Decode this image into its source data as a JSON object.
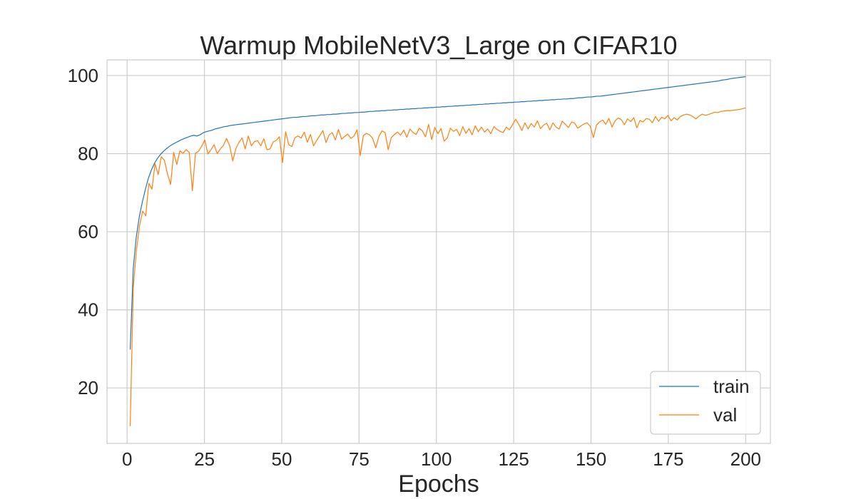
{
  "chart_data": {
    "type": "line",
    "title": "Warmup MobileNetV3_Large on CIFAR10",
    "xlabel": "Epochs",
    "ylabel": "",
    "xlim": [
      -6.5,
      208
    ],
    "ylim": [
      5.8,
      104
    ],
    "xticks": [
      0,
      25,
      50,
      75,
      100,
      125,
      150,
      175,
      200
    ],
    "yticks": [
      20,
      40,
      60,
      80,
      100
    ],
    "grid": true,
    "legend_position": "bottom-right",
    "x_start": 1,
    "x_end": 200,
    "series": [
      {
        "name": "train",
        "color": "#1f77b4",
        "values": [
          29.8,
          50.5,
          58.6,
          63.8,
          67.6,
          70.8,
          73.7,
          75.8,
          77.5,
          78.8,
          79.8,
          80.6,
          81.3,
          81.9,
          82.4,
          82.8,
          83.2,
          83.6,
          83.9,
          84.2,
          84.5,
          84.7,
          84.5,
          84.8,
          85.3,
          85.6,
          85.8,
          86.0,
          86.3,
          86.5,
          86.7,
          86.9,
          87.0,
          87.2,
          87.3,
          87.4,
          87.5,
          87.6,
          87.7,
          87.8,
          87.9,
          88.0,
          88.1,
          88.2,
          88.3,
          88.4,
          88.5,
          88.6,
          88.7,
          88.8,
          88.9,
          89.0,
          89.1,
          89.2,
          89.3,
          89.3,
          89.4,
          89.5,
          89.5,
          89.6,
          89.7,
          89.7,
          89.8,
          89.9,
          89.9,
          90.0,
          90.0,
          90.1,
          90.1,
          90.2,
          90.3,
          90.3,
          90.4,
          90.4,
          90.5,
          90.5,
          90.6,
          90.6,
          90.7,
          90.8,
          90.8,
          90.9,
          90.9,
          91.0,
          91.0,
          91.1,
          91.1,
          91.2,
          91.2,
          91.3,
          91.3,
          91.4,
          91.4,
          91.5,
          91.5,
          91.6,
          91.6,
          91.7,
          91.7,
          91.8,
          91.8,
          91.9,
          91.9,
          92.0,
          92.0,
          92.1,
          92.1,
          92.2,
          92.2,
          92.3,
          92.3,
          92.4,
          92.4,
          92.5,
          92.5,
          92.6,
          92.6,
          92.7,
          92.7,
          92.8,
          92.8,
          92.9,
          92.9,
          93.0,
          93.0,
          93.1,
          93.1,
          93.2,
          93.2,
          93.3,
          93.3,
          93.4,
          93.4,
          93.5,
          93.5,
          93.6,
          93.6,
          93.7,
          93.7,
          93.8,
          93.8,
          93.9,
          93.9,
          94.0,
          94.0,
          94.1,
          94.1,
          94.2,
          94.3,
          94.3,
          94.4,
          94.5,
          94.5,
          94.6,
          94.7,
          94.7,
          94.8,
          94.9,
          95.0,
          95.1,
          95.2,
          95.3,
          95.4,
          95.5,
          95.6,
          95.7,
          95.8,
          95.9,
          96.0,
          96.1,
          96.2,
          96.3,
          96.4,
          96.5,
          96.6,
          96.7,
          96.8,
          96.9,
          97.0,
          97.1,
          97.2,
          97.3,
          97.4,
          97.5,
          97.6,
          97.7,
          97.8,
          97.9,
          98.0,
          98.1,
          98.2,
          98.3,
          98.4,
          98.5,
          98.6,
          98.8,
          98.9,
          99.0,
          99.2,
          99.3,
          99.4,
          99.5,
          99.6,
          99.7
        ]
      },
      {
        "name": "val",
        "color": "#ff7f0e",
        "values": [
          10.2,
          45.8,
          55.2,
          61.5,
          65.3,
          64.1,
          72.4,
          70.9,
          77.4,
          74.6,
          79.2,
          78.3,
          74.8,
          72.1,
          80.3,
          77.2,
          80.7,
          80.1,
          81.0,
          80.3,
          70.5,
          80.1,
          80.6,
          81.9,
          83.5,
          79.9,
          81.0,
          82.3,
          80.0,
          81.2,
          82.1,
          83.9,
          82.0,
          78.1,
          81.3,
          82.9,
          84.0,
          81.2,
          84.5,
          82.0,
          83.1,
          83.3,
          82.0,
          83.8,
          81.0,
          81.2,
          83.0,
          83.4,
          84.3,
          77.7,
          85.6,
          82.3,
          81.8,
          84.1,
          84.5,
          84.0,
          85.5,
          82.9,
          84.9,
          82.0,
          83.4,
          84.6,
          85.9,
          82.8,
          84.8,
          85.4,
          83.5,
          86.2,
          83.7,
          84.4,
          85.0,
          83.9,
          84.5,
          86.1,
          79.5,
          84.6,
          85.2,
          84.8,
          83.9,
          81.5,
          84.4,
          85.8,
          85.4,
          81.0,
          84.1,
          84.9,
          85.5,
          84.7,
          86.0,
          84.2,
          86.3,
          85.4,
          84.9,
          86.5,
          85.8,
          84.3,
          87.5,
          83.6,
          86.7,
          85.1,
          86.4,
          83.2,
          84.0,
          86.5,
          85.7,
          86.2,
          84.6,
          86.9,
          85.2,
          86.4,
          84.8,
          87.1,
          85.6,
          86.8,
          85.5,
          86.3,
          85.1,
          86.9,
          86.2,
          85.7,
          85.4,
          86.8,
          86.1,
          87.4,
          88.8,
          87.5,
          85.9,
          87.9,
          86.3,
          87.7,
          86.8,
          88.4,
          86.4,
          87.3,
          87.8,
          86.1,
          87.9,
          86.8,
          86.3,
          88.3,
          87.5,
          86.7,
          88.1,
          87.8,
          86.5,
          87.1,
          87.6,
          87.9,
          87.0,
          84.1,
          87.3,
          88.1,
          88.6,
          87.5,
          89.0,
          86.8,
          88.4,
          89.1,
          88.7,
          87.4,
          88.9,
          88.2,
          89.2,
          86.6,
          88.5,
          88.1,
          89.0,
          88.8,
          87.9,
          89.5,
          88.3,
          89.3,
          88.9,
          89.8,
          88.4,
          89.2,
          88.6,
          89.5,
          89.9,
          90.1,
          89.9,
          89.5,
          88.9,
          89.6,
          90.1,
          89.8,
          90.0,
          90.3,
          90.6,
          90.5,
          90.8,
          90.9,
          91.0,
          91.0,
          91.1,
          91.2,
          91.3,
          91.5,
          91.7
        ]
      }
    ]
  }
}
